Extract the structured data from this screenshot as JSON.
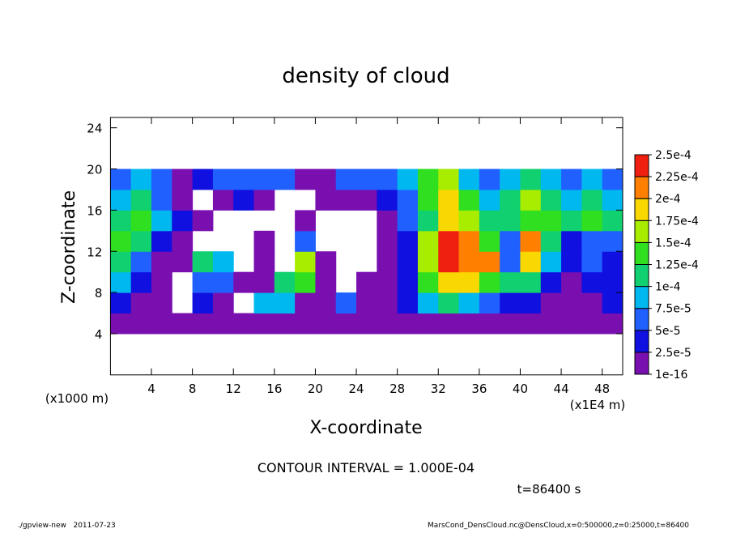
{
  "chart_data": {
    "type": "heatmap",
    "title": "density of cloud",
    "xlabel": "X-coordinate",
    "ylabel": "Z-coordinate",
    "xunit": "(x1E4 m)",
    "yunit": "(x1000 m)",
    "xlim": [
      0,
      50
    ],
    "ylim": [
      0,
      25
    ],
    "xticks": [
      4,
      8,
      12,
      16,
      20,
      24,
      28,
      32,
      36,
      40,
      44,
      48
    ],
    "yticks": [
      4,
      8,
      12,
      16,
      20,
      24
    ],
    "xbins": [
      0,
      2,
      4,
      6,
      8,
      10,
      12,
      14,
      16,
      18,
      20,
      22,
      24,
      26,
      28,
      30,
      32,
      34,
      36,
      38,
      40,
      42,
      44,
      46,
      48,
      50
    ],
    "zbins": [
      4,
      6,
      8,
      10,
      12,
      14,
      16,
      18,
      20
    ],
    "values": [
      [
        1e-05,
        1e-05,
        1e-05,
        1e-05,
        1e-05,
        1e-05,
        1e-05,
        1e-05,
        1e-05,
        1e-05,
        1e-05,
        1e-05,
        1e-05,
        1e-05,
        1e-05,
        1e-05,
        1e-05,
        1e-05,
        1e-05,
        1e-05,
        1e-05,
        1e-05,
        1e-05,
        1e-05,
        1e-05
      ],
      [
        3e-05,
        1e-05,
        1e-05,
        null,
        3e-05,
        1e-05,
        null,
        9e-05,
        9e-05,
        1e-05,
        1e-05,
        6e-05,
        1e-05,
        1e-05,
        3e-05,
        9e-05,
        0.00011,
        9e-05,
        6e-05,
        3e-05,
        3e-05,
        1e-05,
        1e-05,
        1e-05,
        3e-05
      ],
      [
        9e-05,
        3e-05,
        1e-05,
        null,
        6e-05,
        6e-05,
        1e-05,
        1e-05,
        0.00011,
        0.00014,
        1e-05,
        null,
        1e-05,
        1e-05,
        3e-05,
        0.00014,
        0.00019,
        0.00019,
        0.00014,
        0.00011,
        0.00011,
        3e-05,
        1e-05,
        3e-05,
        3e-05
      ],
      [
        0.00011,
        6e-05,
        1e-05,
        1e-05,
        0.00011,
        9e-05,
        null,
        1e-05,
        null,
        0.00016,
        1e-05,
        null,
        null,
        1e-05,
        3e-05,
        0.00016,
        0.00024,
        0.00021,
        0.00021,
        6e-05,
        0.00019,
        9e-05,
        3e-05,
        6e-05,
        3e-05
      ],
      [
        0.00014,
        0.00011,
        3e-05,
        1e-05,
        null,
        null,
        null,
        1e-05,
        null,
        6e-05,
        null,
        null,
        null,
        1e-05,
        3e-05,
        0.00016,
        0.00024,
        0.00021,
        0.00014,
        6e-05,
        0.00021,
        0.00011,
        3e-05,
        6e-05,
        6e-05
      ],
      [
        0.00011,
        0.00014,
        9e-05,
        3e-05,
        1e-05,
        null,
        null,
        null,
        null,
        1e-05,
        null,
        null,
        null,
        1e-05,
        6e-05,
        0.00011,
        0.00019,
        0.00016,
        0.00011,
        0.00011,
        0.00014,
        0.00014,
        0.00011,
        0.00014,
        0.00011
      ],
      [
        9e-05,
        0.00011,
        6e-05,
        1e-05,
        null,
        1e-05,
        3e-05,
        1e-05,
        null,
        null,
        1e-05,
        1e-05,
        1e-05,
        3e-05,
        6e-05,
        0.00014,
        0.00019,
        0.00014,
        9e-05,
        0.00011,
        0.00016,
        0.00011,
        9e-05,
        0.00011,
        9e-05
      ],
      [
        6e-05,
        9e-05,
        6e-05,
        1e-05,
        3e-05,
        6e-05,
        6e-05,
        6e-05,
        6e-05,
        1e-05,
        1e-05,
        6e-05,
        6e-05,
        6e-05,
        9e-05,
        0.00014,
        0.00016,
        9e-05,
        6e-05,
        9e-05,
        0.00011,
        9e-05,
        6e-05,
        9e-05,
        6e-05
      ]
    ],
    "levels": [
      1e-16,
      {
        "value": 2.5e-05,
        "label": "2.5e-5"
      },
      {
        "value": 5e-05,
        "label": "5e-5"
      },
      {
        "value": 7.5e-05,
        "label": "7.5e-5"
      },
      {
        "value": 0.0001,
        "label": "1e-4"
      },
      {
        "value": 0.000125,
        "label": "1.25e-4"
      },
      {
        "value": 0.00015,
        "label": "1.5e-4"
      },
      {
        "value": 0.000175,
        "label": "1.75e-4"
      },
      {
        "value": 0.0002,
        "label": "2e-4"
      },
      {
        "value": 0.000225,
        "label": "2.25e-4"
      },
      {
        "value": 0.00025,
        "label": "2.5e-4"
      }
    ],
    "colors": [
      "#7a0fb0",
      "#1010e0",
      "#2060ff",
      "#00b8f0",
      "#10d070",
      "#30e020",
      "#a8ec00",
      "#f8d800",
      "#ff8000",
      "#f02010"
    ],
    "annotation": "CONTOUR INTERVAL = 1.000E-04",
    "time": "t=86400 s",
    "footer_left": "./gpview-new   2011-07-23",
    "footer_right": "MarsCond_DensCloud.nc@DensCloud,x=0:500000,z=0:25000,t=86400"
  }
}
